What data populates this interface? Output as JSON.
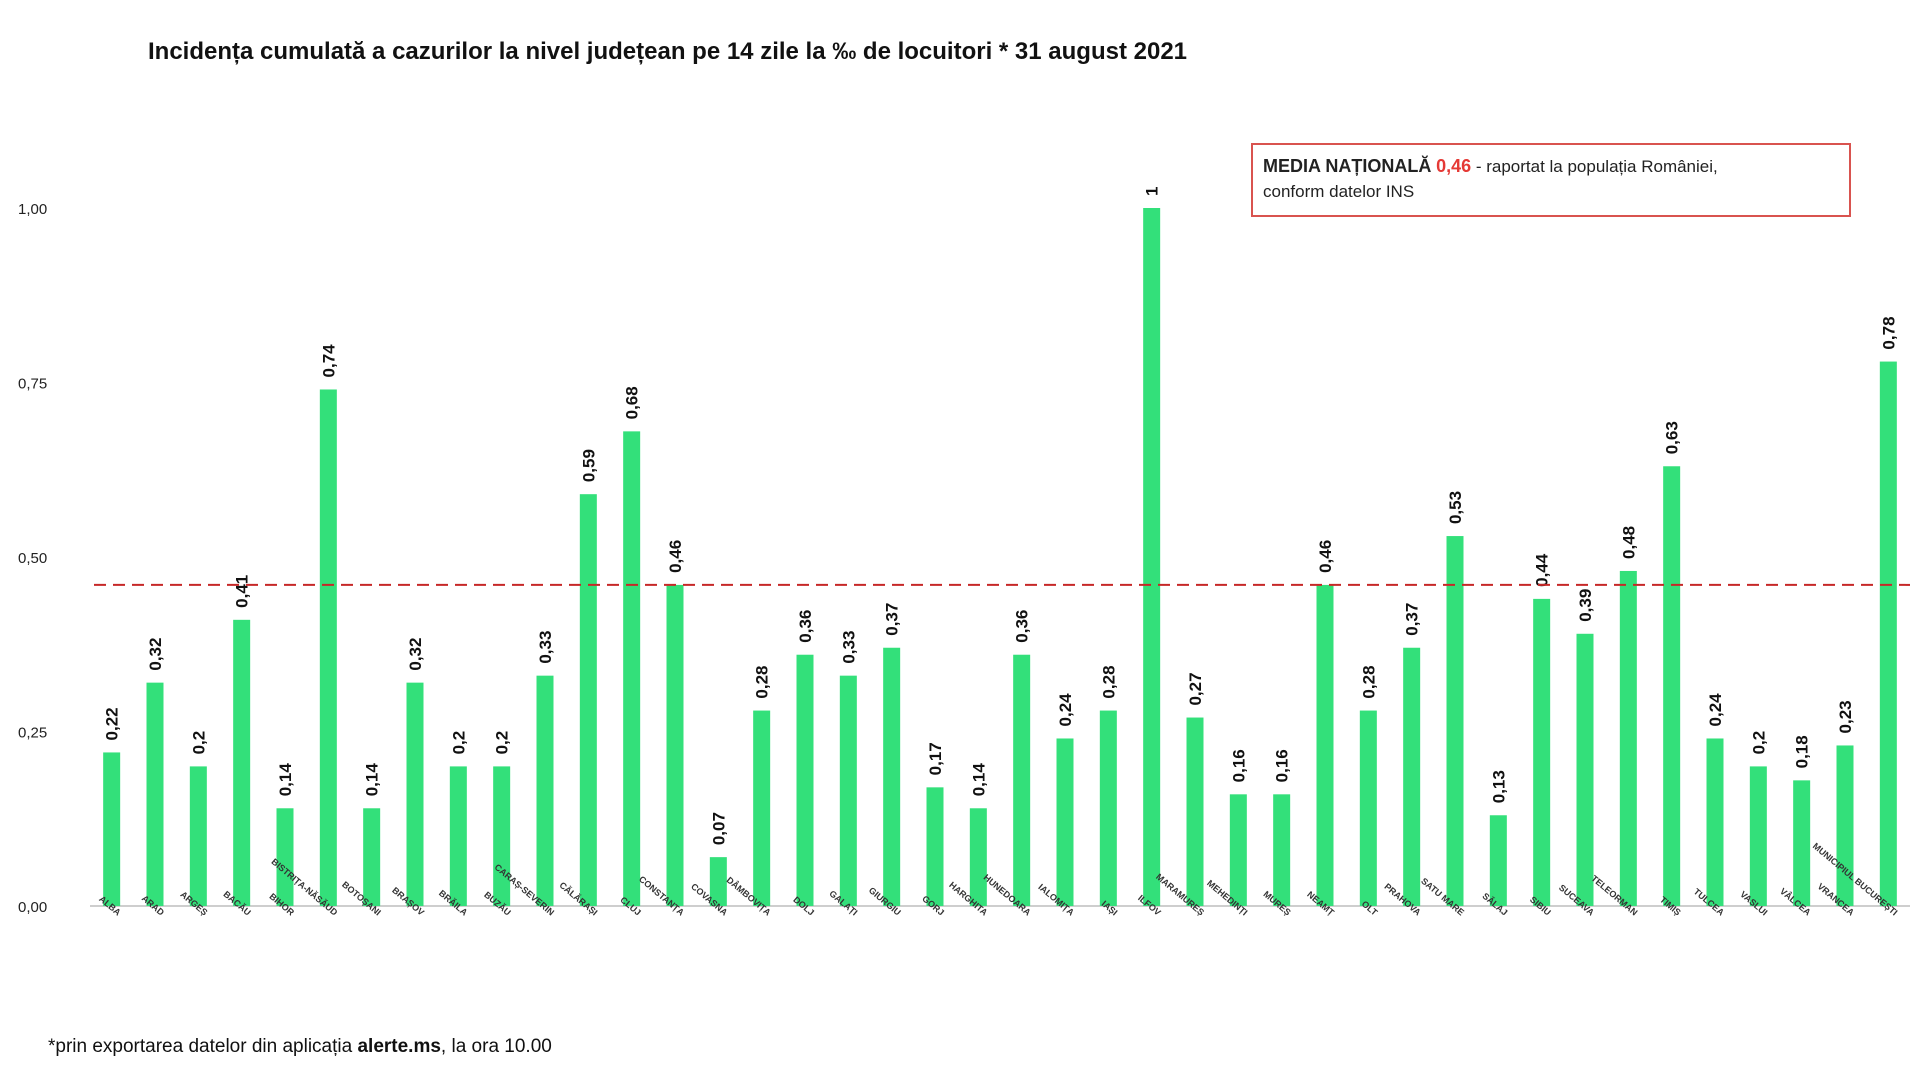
{
  "title": "Incidența cumulată a cazurilor la nivel județean pe 14 zile la ‰ de locuitori * 31 august 2021",
  "callout": {
    "label": "MEDIA NAȚIONALĂ",
    "value": "0,46",
    "text1": " - raportat la populația României,",
    "text2": "conform datelor INS"
  },
  "footnote": {
    "prefix": "*prin exportarea datelor din aplicația ",
    "app": "alerte.ms",
    "suffix": ", la ora 10.00"
  },
  "colors": {
    "bar": "#33e07a",
    "reference_line": "#c62828",
    "axis": "#9e9e9e"
  },
  "chart_data": {
    "type": "bar",
    "title": "Incidența cumulată a cazurilor la nivel județean pe 14 zile la ‰ de locuitori * 31 august 2021",
    "xlabel": "",
    "ylabel": "",
    "ylim": [
      0,
      1
    ],
    "yticks": [
      "0,00",
      "0,25",
      "0,50",
      "0,75",
      "1,00"
    ],
    "ytick_values": [
      0,
      0.25,
      0.5,
      0.75,
      1.0
    ],
    "grid": false,
    "reference_line": {
      "value": 0.46,
      "style": "dashed"
    },
    "categories": [
      "ALBA",
      "ARAD",
      "ARGEȘ",
      "BACĂU",
      "BIHOR",
      "BISTRIȚA-NĂSĂUD",
      "BOTOȘANI",
      "BRAȘOV",
      "BRĂILA",
      "BUZĂU",
      "CARAȘ-SEVERIN",
      "CĂLĂRAȘI",
      "CLUJ",
      "CONSTANȚA",
      "COVASNA",
      "DÂMBOVIȚA",
      "DOLJ",
      "GALAȚI",
      "GIURGIU",
      "GORJ",
      "HARGHITA",
      "HUNEDOARA",
      "IALOMIȚA",
      "IAȘI",
      "ILFOV",
      "MARAMUREȘ",
      "MEHEDINȚI",
      "MUREȘ",
      "NEAMȚ",
      "OLT",
      "PRAHOVA",
      "SATU MARE",
      "SĂLAJ",
      "SIBIU",
      "SUCEAVA",
      "TELEORMAN",
      "TIMIȘ",
      "TULCEA",
      "VASLUI",
      "VÂLCEA",
      "VRANCEA",
      "MUNICIPIUL BUCUREȘTI"
    ],
    "values": [
      0.22,
      0.32,
      0.2,
      0.41,
      0.14,
      0.74,
      0.14,
      0.32,
      0.2,
      0.2,
      0.33,
      0.59,
      0.68,
      0.46,
      0.07,
      0.28,
      0.36,
      0.33,
      0.37,
      0.17,
      0.14,
      0.36,
      0.24,
      0.28,
      1,
      0.27,
      0.16,
      0.16,
      0.46,
      0.28,
      0.37,
      0.53,
      0.13,
      0.44,
      0.39,
      0.48,
      0.63,
      0.24,
      0.2,
      0.18,
      0.23,
      0.78
    ],
    "labels": [
      "0,22",
      "0,32",
      "0,2",
      "0,41",
      "0,14",
      "0,74",
      "0,14",
      "0,32",
      "0,2",
      "0,2",
      "0,33",
      "0,59",
      "0,68",
      "0,46",
      "0,07",
      "0,28",
      "0,36",
      "0,33",
      "0,37",
      "0,17",
      "0,14",
      "0,36",
      "0,24",
      "0,28",
      "1",
      "0,27",
      "0,16",
      "0,16",
      "0,46",
      "0,28",
      "0,37",
      "0,53",
      "0,13",
      "0,44",
      "0,39",
      "0,48",
      "0,63",
      "0,24",
      "0,2",
      "0,18",
      "0,23",
      "0,78"
    ]
  }
}
